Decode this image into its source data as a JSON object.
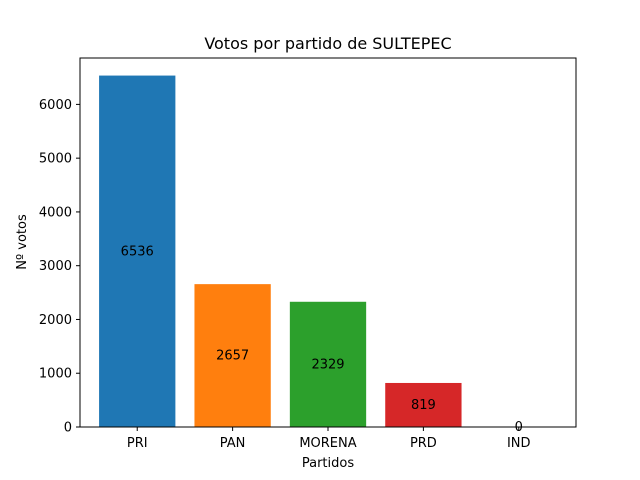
{
  "chart_data": {
    "type": "bar",
    "title": "Votos por partido de SULTEPEC",
    "xlabel": "Partidos",
    "ylabel": "Nº votos",
    "categories": [
      "PRI",
      "PAN",
      "MORENA",
      "PRD",
      "IND"
    ],
    "values": [
      6536,
      2657,
      2329,
      819,
      0
    ],
    "data_labels": [
      "6536",
      "2657",
      "2329",
      "819",
      "0"
    ],
    "colors": [
      "#1f77b4",
      "#ff7f0e",
      "#2ca02c",
      "#d62728",
      "#9467bd"
    ],
    "ylim": [
      0,
      6862.8
    ],
    "yticks": [
      0,
      1000,
      2000,
      3000,
      4000,
      5000,
      6000
    ],
    "ytick_labels": [
      "0",
      "1000",
      "2000",
      "3000",
      "4000",
      "5000",
      "6000"
    ],
    "grid": false,
    "legend": "none"
  }
}
